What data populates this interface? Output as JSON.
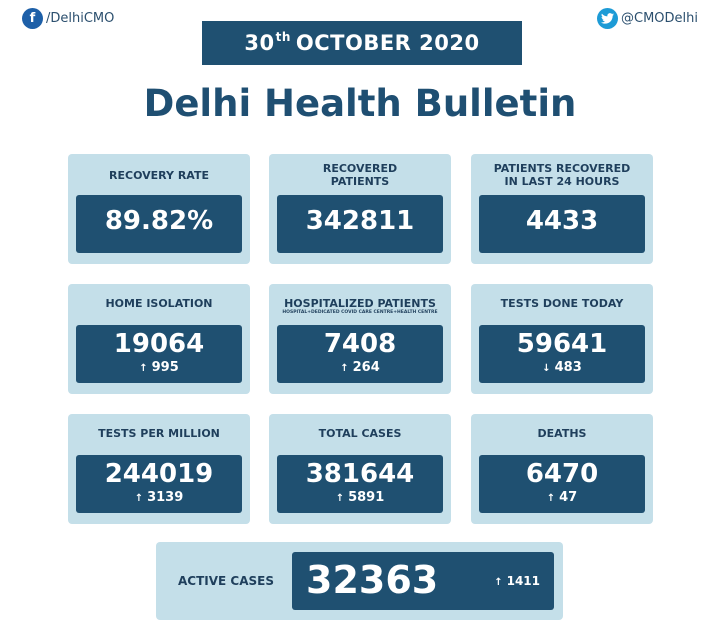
{
  "header": {
    "facebook": {
      "icon": "facebook-icon",
      "handle": "/DelhiCMO"
    },
    "twitter": {
      "icon": "twitter-icon",
      "handle": "@CMODelhi"
    },
    "date": {
      "day": "30",
      "suffix": "th",
      "rest": "OCTOBER 2020"
    },
    "title": "Delhi Health Bulletin"
  },
  "stats": {
    "recovery_rate": {
      "label": "RECOVERY RATE",
      "value": "89.82%"
    },
    "recovered_patients": {
      "label_line1": "RECOVERED",
      "label_line2": "PATIENTS",
      "value": "342811"
    },
    "recovered_24h": {
      "label_line1": "PATIENTS RECOVERED",
      "label_line2": "IN LAST 24 HOURS",
      "value": "4433"
    },
    "home_isolation": {
      "label": "HOME ISOLATION",
      "value": "19064",
      "delta": "995",
      "direction": "up"
    },
    "hospitalized": {
      "label": "HOSPITALIZED PATIENTS",
      "sublabel": "HOSPITAL+DEDICATED COVID CARE CENTRE+HEALTH CENTRE",
      "value": "7408",
      "delta": "264",
      "direction": "up"
    },
    "tests_today": {
      "label": "TESTS DONE TODAY",
      "value": "59641",
      "delta": "483",
      "direction": "down"
    },
    "tests_per_million": {
      "label": "TESTS PER MILLION",
      "value": "244019",
      "delta": "3139",
      "direction": "up"
    },
    "total_cases": {
      "label": "TOTAL CASES",
      "value": "381644",
      "delta": "5891",
      "direction": "up"
    },
    "deaths": {
      "label": "DEATHS",
      "value": "6470",
      "delta": "47",
      "direction": "up"
    },
    "active_cases": {
      "label": "ACTIVE CASES",
      "value": "32363",
      "delta": "1411",
      "direction": "up"
    }
  },
  "colors": {
    "dark_blue": "#1f5071",
    "card_bg": "#c4dfe9",
    "title": "#1f4f72"
  }
}
